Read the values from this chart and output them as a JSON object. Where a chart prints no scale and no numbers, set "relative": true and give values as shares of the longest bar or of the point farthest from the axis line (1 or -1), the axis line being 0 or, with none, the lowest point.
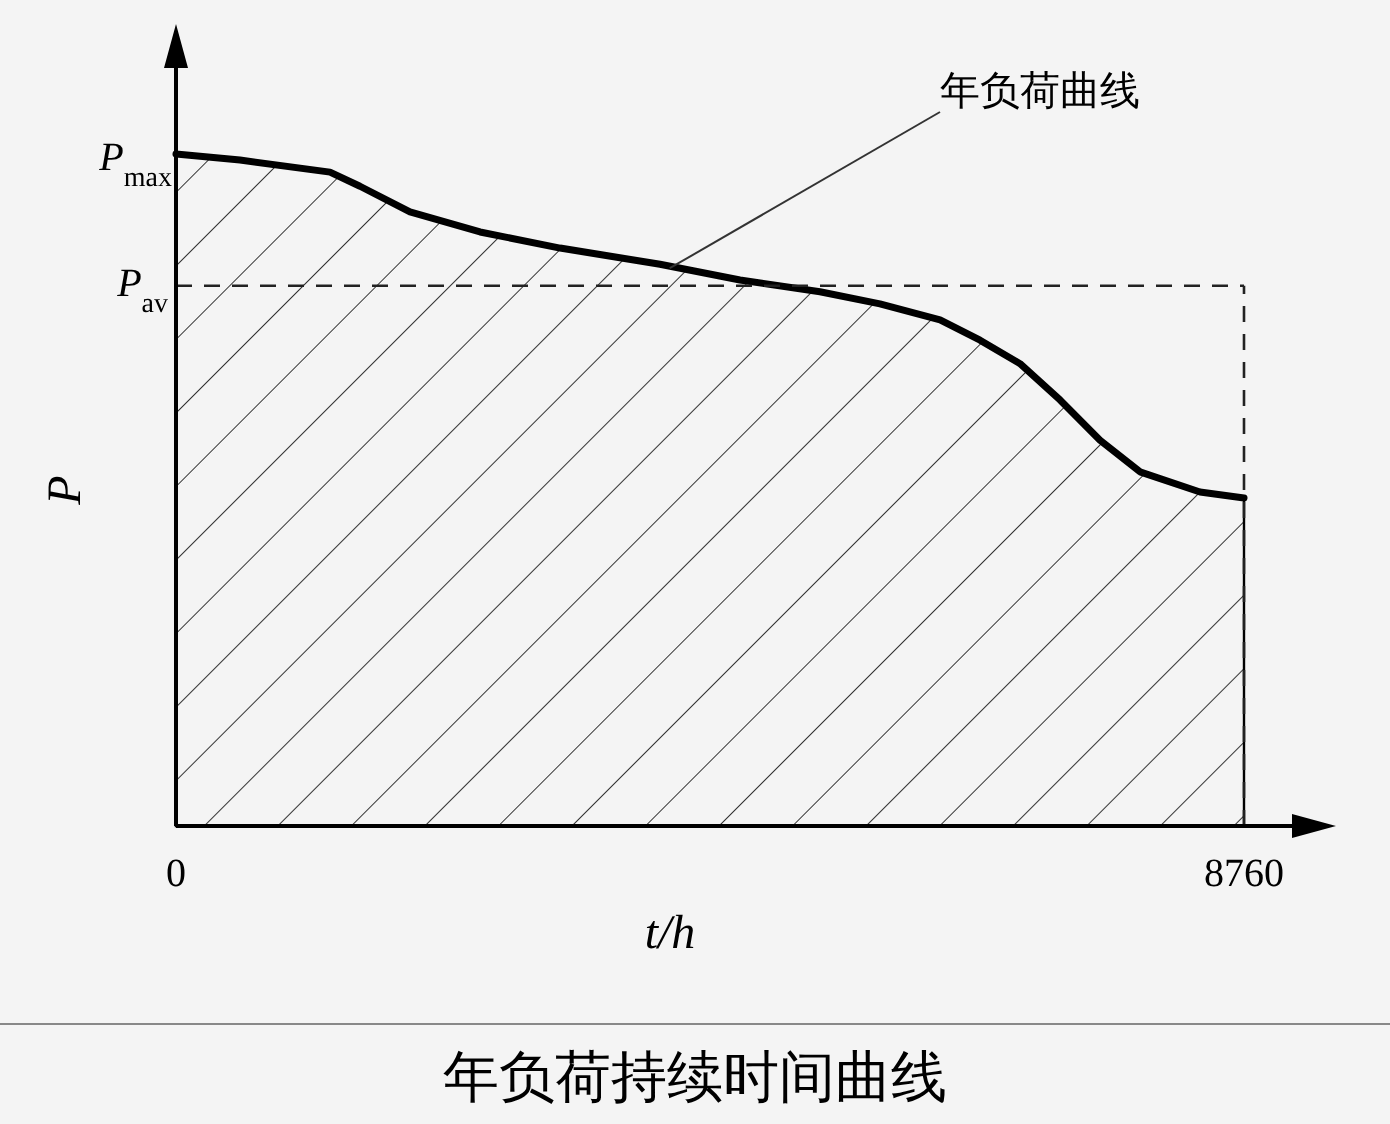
{
  "chart_data": {
    "type": "area",
    "title": "年负荷持续时间曲线",
    "xlabel": "t/h",
    "ylabel": "P",
    "relative": true,
    "x": [
      0,
      525,
      1263,
      1509,
      1919,
      2494,
      3150,
      3970,
      4626,
      5282,
      5774,
      6267,
      6595,
      6923,
      7251,
      7579,
      7907,
      8399,
      8760
    ],
    "series": [
      {
        "color": "#000000",
        "values": [
          1.0,
          0.991,
          0.973,
          0.952,
          0.914,
          0.884,
          0.86,
          0.836,
          0.8125,
          0.795,
          0.777,
          0.753,
          0.723,
          0.688,
          0.634,
          0.574,
          0.527,
          0.497,
          0.488
        ]
      }
    ],
    "xlim": [
      0,
      8760
    ],
    "xticks": [
      0,
      8760
    ],
    "ref_lines": [
      {
        "axis": "y",
        "value": 0.804,
        "label": "P$_{av}$",
        "line_style": "dashed"
      },
      {
        "axis": "x",
        "value": 8760,
        "line_style": "dashed"
      }
    ],
    "annotations": [
      {
        "text": "P$_{max}$",
        "x": 0,
        "y": 1
      },
      {
        "text": "年负荷曲线",
        "x": 4050,
        "y": 0.83
      }
    ]
  }
}
